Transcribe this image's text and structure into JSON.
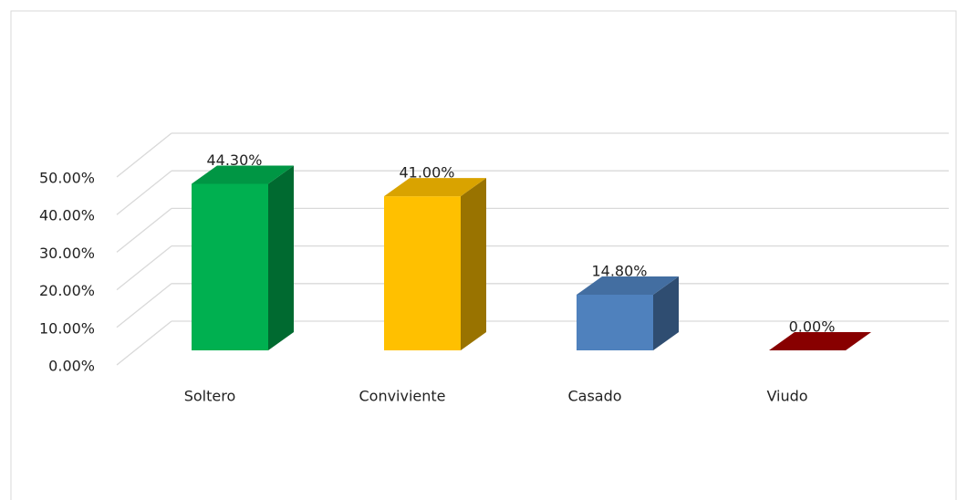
{
  "chart_data": {
    "type": "bar3d",
    "categories": [
      "Soltero",
      "Conviviente",
      "Casado",
      "Viudo"
    ],
    "values": [
      44.3,
      41.0,
      14.8,
      0.0
    ],
    "value_labels": [
      "44.30%",
      "41.00%",
      "14.80%",
      "0.00%"
    ],
    "colors": [
      "#00b050",
      "#ffc000",
      "#4f81bd",
      "#a00000"
    ],
    "ylim": [
      0,
      50
    ],
    "yticks": [
      {
        "value": 0,
        "label": "0.00%"
      },
      {
        "value": 10,
        "label": "10.00%"
      },
      {
        "value": 20,
        "label": "20.00%"
      },
      {
        "value": 30,
        "label": "30.00%"
      },
      {
        "value": 40,
        "label": "40.00%"
      },
      {
        "value": 50,
        "label": "50.00%"
      }
    ],
    "grid": true
  }
}
